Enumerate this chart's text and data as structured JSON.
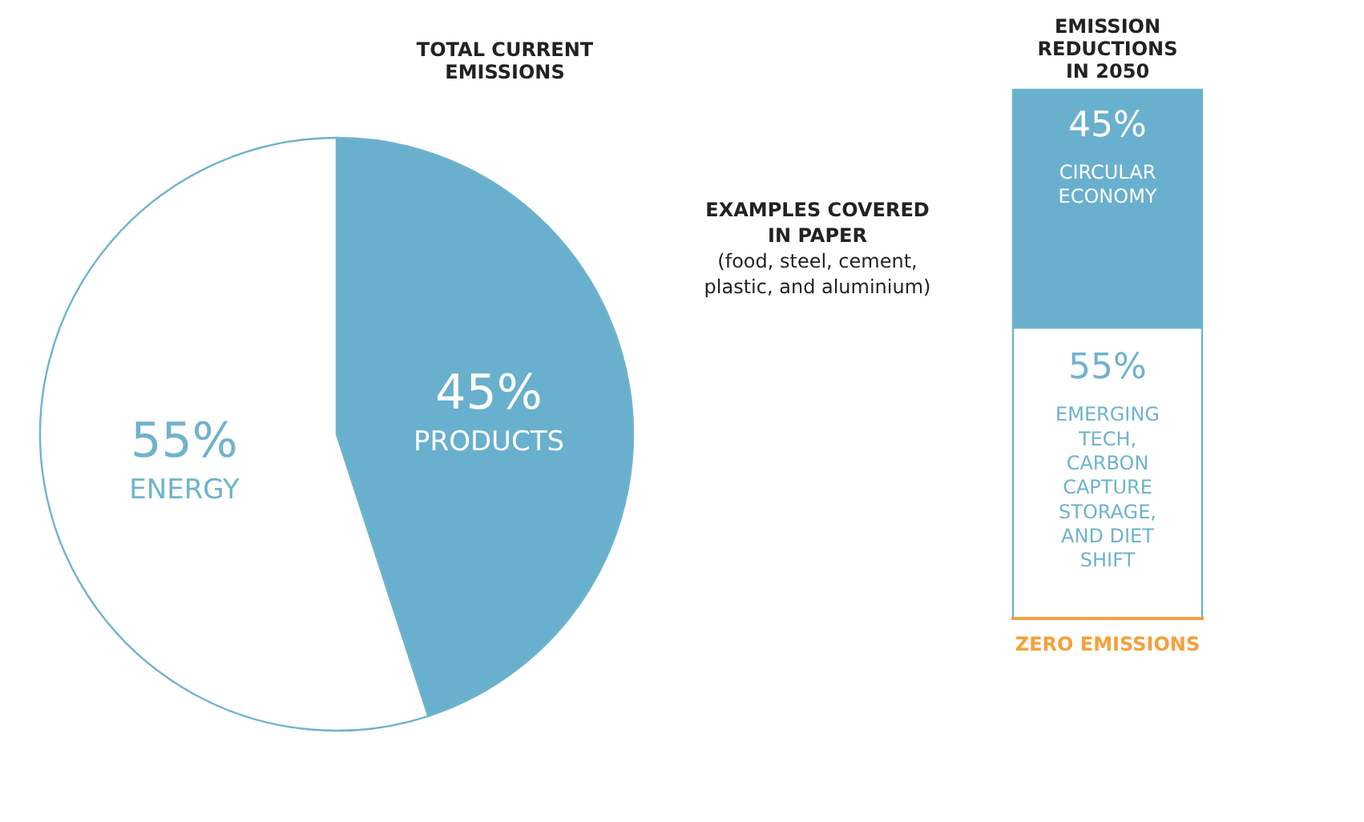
{
  "chart_data": [
    {
      "type": "pie",
      "title": "TOTAL CURRENT EMISSIONS",
      "categories": [
        "PRODUCTS",
        "ENERGY"
      ],
      "values": [
        45,
        55
      ],
      "colors": [
        "#68b0cd",
        "#ffffff"
      ],
      "value_labels": [
        "45%",
        "55%"
      ],
      "annotations": [
        "EXAMPLES COVERED IN PAPER",
        "(food, steel, cement, plastic, and aluminium)"
      ]
    },
    {
      "type": "bar",
      "stacked": true,
      "title": "EMISSION REDUCTIONS IN 2050",
      "categories": [
        null
      ],
      "series": [
        {
          "name": "EMERGING TECH, CARBON CAPTURE STORAGE, AND DIET SHIFT",
          "color": "#ffffff",
          "values": [
            55
          ],
          "value_labels": [
            "55%"
          ]
        },
        {
          "name": "CIRCULAR ECONOMY",
          "color": "#68b0cd",
          "values": [
            45
          ],
          "value_labels": [
            "45%"
          ]
        }
      ],
      "ref_lines": [
        {
          "axis": "y",
          "value": 0,
          "label": "ZERO EMISSIONS",
          "color": "#f5a03c"
        }
      ]
    }
  ]
}
